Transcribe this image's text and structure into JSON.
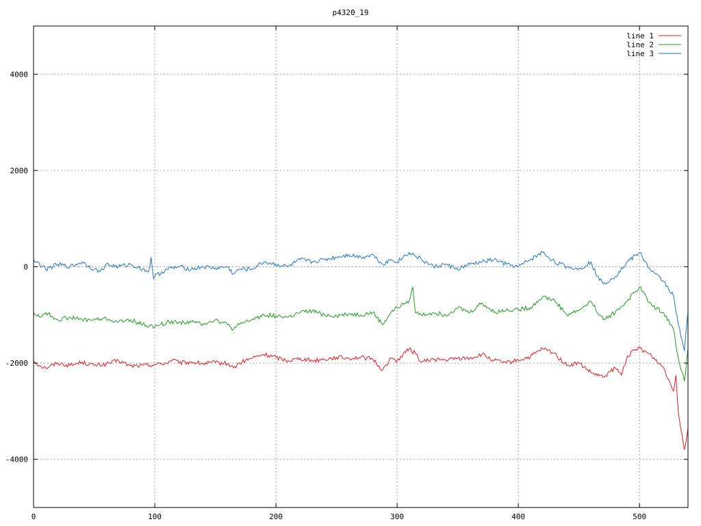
{
  "chart_data": {
    "type": "line",
    "title": "p4320_19",
    "xlabel": "",
    "ylabel": "",
    "xlim": [
      0,
      540
    ],
    "ylim": [
      -5000,
      5000
    ],
    "x_ticks": [
      0,
      100,
      200,
      300,
      400,
      500
    ],
    "y_ticks": [
      -4000,
      -2000,
      0,
      2000,
      4000
    ],
    "x_tick_labels": [
      "0",
      "100",
      "200",
      "300",
      "400",
      "500"
    ],
    "y_tick_labels": [
      "-4000",
      "-2000",
      "0",
      "2000",
      "4000"
    ],
    "grid": true,
    "legend_position": "top-right",
    "series": [
      {
        "name": "line 1",
        "color": "#e41a1c",
        "points": [
          [
            0,
            -1950
          ],
          [
            5,
            -2050
          ],
          [
            10,
            -2100
          ],
          [
            20,
            -2000
          ],
          [
            30,
            -2050
          ],
          [
            40,
            -1980
          ],
          [
            50,
            -2050
          ],
          [
            60,
            -2020
          ],
          [
            70,
            -1950
          ],
          [
            80,
            -2060
          ],
          [
            90,
            -2050
          ],
          [
            100,
            -2030
          ],
          [
            110,
            -2000
          ],
          [
            115,
            -1920
          ],
          [
            120,
            -2000
          ],
          [
            130,
            -1980
          ],
          [
            140,
            -2010
          ],
          [
            150,
            -1990
          ],
          [
            160,
            -2010
          ],
          [
            165,
            -2100
          ],
          [
            170,
            -2000
          ],
          [
            180,
            -1900
          ],
          [
            190,
            -1820
          ],
          [
            200,
            -1880
          ],
          [
            210,
            -1950
          ],
          [
            220,
            -1900
          ],
          [
            230,
            -1950
          ],
          [
            240,
            -1920
          ],
          [
            250,
            -1880
          ],
          [
            260,
            -1900
          ],
          [
            270,
            -1880
          ],
          [
            280,
            -1920
          ],
          [
            288,
            -2150
          ],
          [
            295,
            -1900
          ],
          [
            300,
            -1950
          ],
          [
            310,
            -1700
          ],
          [
            315,
            -1800
          ],
          [
            320,
            -1980
          ],
          [
            330,
            -1920
          ],
          [
            340,
            -1940
          ],
          [
            350,
            -1900
          ],
          [
            360,
            -1900
          ],
          [
            370,
            -1820
          ],
          [
            380,
            -1950
          ],
          [
            390,
            -2000
          ],
          [
            400,
            -1940
          ],
          [
            410,
            -1870
          ],
          [
            420,
            -1700
          ],
          [
            430,
            -1800
          ],
          [
            440,
            -2050
          ],
          [
            450,
            -2000
          ],
          [
            460,
            -2200
          ],
          [
            470,
            -2300
          ],
          [
            480,
            -2100
          ],
          [
            485,
            -2250
          ],
          [
            490,
            -1850
          ],
          [
            500,
            -1680
          ],
          [
            510,
            -1850
          ],
          [
            520,
            -2100
          ],
          [
            528,
            -2580
          ],
          [
            530,
            -2250
          ],
          [
            532,
            -3000
          ],
          [
            537,
            -3800
          ],
          [
            540,
            -3350
          ]
        ]
      },
      {
        "name": "line 2",
        "color": "#1a9e1a",
        "points": [
          [
            0,
            -950
          ],
          [
            5,
            -1050
          ],
          [
            10,
            -950
          ],
          [
            20,
            -1100
          ],
          [
            30,
            -1050
          ],
          [
            40,
            -1100
          ],
          [
            50,
            -1100
          ],
          [
            60,
            -1080
          ],
          [
            70,
            -1150
          ],
          [
            80,
            -1100
          ],
          [
            90,
            -1200
          ],
          [
            100,
            -1250
          ],
          [
            110,
            -1150
          ],
          [
            120,
            -1150
          ],
          [
            130,
            -1150
          ],
          [
            140,
            -1180
          ],
          [
            150,
            -1100
          ],
          [
            160,
            -1200
          ],
          [
            165,
            -1300
          ],
          [
            170,
            -1200
          ],
          [
            180,
            -1100
          ],
          [
            190,
            -1000
          ],
          [
            200,
            -1020
          ],
          [
            210,
            -1050
          ],
          [
            220,
            -950
          ],
          [
            230,
            -920
          ],
          [
            240,
            -1000
          ],
          [
            250,
            -1020
          ],
          [
            260,
            -980
          ],
          [
            270,
            -1000
          ],
          [
            280,
            -950
          ],
          [
            288,
            -1200
          ],
          [
            295,
            -950
          ],
          [
            300,
            -850
          ],
          [
            305,
            -780
          ],
          [
            310,
            -700
          ],
          [
            313,
            -420
          ],
          [
            315,
            -950
          ],
          [
            320,
            -1000
          ],
          [
            330,
            -950
          ],
          [
            340,
            -1000
          ],
          [
            350,
            -850
          ],
          [
            360,
            -950
          ],
          [
            370,
            -750
          ],
          [
            380,
            -950
          ],
          [
            390,
            -900
          ],
          [
            400,
            -880
          ],
          [
            410,
            -850
          ],
          [
            420,
            -620
          ],
          [
            430,
            -700
          ],
          [
            440,
            -1000
          ],
          [
            450,
            -900
          ],
          [
            460,
            -720
          ],
          [
            470,
            -1100
          ],
          [
            480,
            -950
          ],
          [
            490,
            -700
          ],
          [
            500,
            -420
          ],
          [
            510,
            -800
          ],
          [
            520,
            -950
          ],
          [
            528,
            -1300
          ],
          [
            532,
            -1900
          ],
          [
            537,
            -2380
          ],
          [
            540,
            -1700
          ]
        ]
      },
      {
        "name": "line 3",
        "color": "#1874cd",
        "points": [
          [
            0,
            150
          ],
          [
            5,
            50
          ],
          [
            10,
            -50
          ],
          [
            20,
            50
          ],
          [
            30,
            0
          ],
          [
            40,
            100
          ],
          [
            50,
            -50
          ],
          [
            55,
            -100
          ],
          [
            60,
            50
          ],
          [
            70,
            0
          ],
          [
            80,
            50
          ],
          [
            90,
            -50
          ],
          [
            95,
            -100
          ],
          [
            97,
            200
          ],
          [
            99,
            -250
          ],
          [
            100,
            -200
          ],
          [
            110,
            -50
          ],
          [
            120,
            0
          ],
          [
            130,
            -50
          ],
          [
            140,
            0
          ],
          [
            150,
            -30
          ],
          [
            160,
            0
          ],
          [
            165,
            -150
          ],
          [
            170,
            -50
          ],
          [
            180,
            -50
          ],
          [
            190,
            100
          ],
          [
            200,
            50
          ],
          [
            210,
            0
          ],
          [
            220,
            150
          ],
          [
            230,
            100
          ],
          [
            240,
            150
          ],
          [
            250,
            200
          ],
          [
            260,
            250
          ],
          [
            270,
            200
          ],
          [
            280,
            250
          ],
          [
            288,
            50
          ],
          [
            295,
            150
          ],
          [
            300,
            100
          ],
          [
            310,
            300
          ],
          [
            320,
            150
          ],
          [
            330,
            0
          ],
          [
            340,
            50
          ],
          [
            350,
            -50
          ],
          [
            360,
            50
          ],
          [
            370,
            100
          ],
          [
            380,
            150
          ],
          [
            390,
            50
          ],
          [
            400,
            0
          ],
          [
            410,
            150
          ],
          [
            420,
            300
          ],
          [
            430,
            100
          ],
          [
            440,
            0
          ],
          [
            450,
            -50
          ],
          [
            460,
            100
          ],
          [
            465,
            -200
          ],
          [
            470,
            -350
          ],
          [
            480,
            -200
          ],
          [
            490,
            100
          ],
          [
            500,
            300
          ],
          [
            510,
            -100
          ],
          [
            520,
            -300
          ],
          [
            528,
            -600
          ],
          [
            532,
            -1200
          ],
          [
            537,
            -1750
          ],
          [
            540,
            -950
          ]
        ]
      }
    ]
  }
}
